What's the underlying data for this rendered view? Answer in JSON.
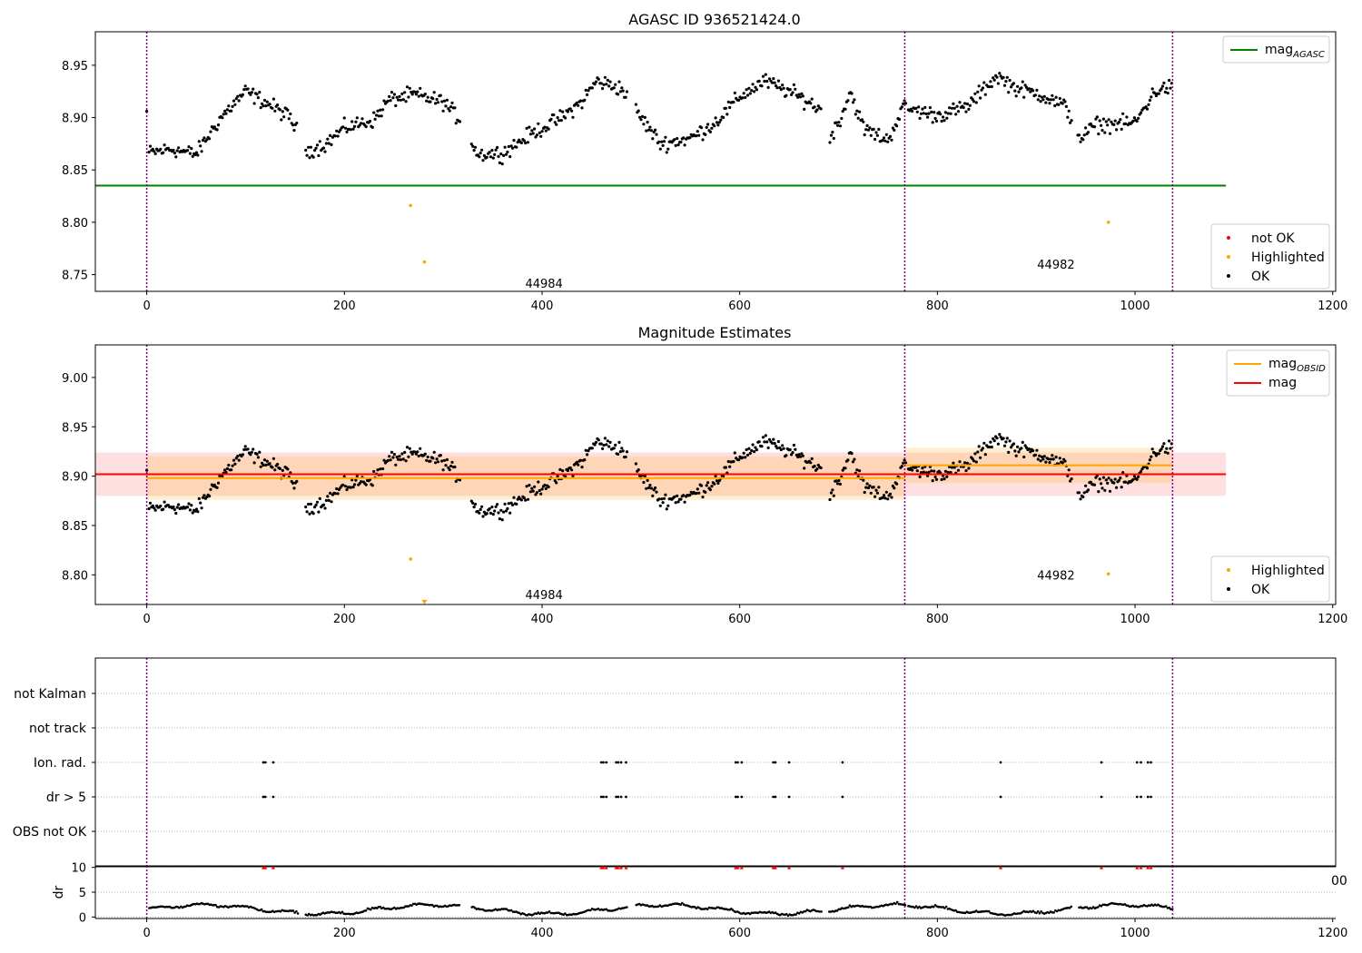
{
  "chart_data": [
    {
      "type": "scatter",
      "title": "AGASC ID 936521424.0",
      "xlabel": "",
      "ylabel": "",
      "xlim": [
        -52,
        1203
      ],
      "ylim": [
        8.734,
        8.982
      ],
      "xticks": [
        0,
        200,
        400,
        600,
        800,
        1000,
        1200
      ],
      "yticks": [
        8.75,
        8.8,
        8.85,
        8.9,
        8.95
      ],
      "legend": "top-right",
      "legend_items": [
        {
          "kind": "line",
          "label": "mag",
          "sub": "AGASC",
          "color": "#008000"
        }
      ],
      "legend2": "bottom-right",
      "legend2_items": [
        {
          "kind": "dot",
          "label": "not OK",
          "color": "#ff0000"
        },
        {
          "kind": "dot",
          "label": "Highlighted",
          "color": "#ffa500"
        },
        {
          "kind": "dot",
          "label": "OK",
          "color": "#000000"
        }
      ],
      "obs_boundaries": [
        0,
        767,
        1038
      ],
      "obsids": [
        {
          "label": "44984",
          "x": 383,
          "y": 8.742
        },
        {
          "label": "44982",
          "x": 901,
          "y": 8.76
        }
      ],
      "mag_agasc": {
        "value": 8.835,
        "x": [
          -52,
          1092
        ],
        "color": "#008000"
      },
      "highlighted": [
        {
          "x": 267,
          "y": 8.816
        },
        {
          "x": 281,
          "y": 8.762
        },
        {
          "x": 973,
          "y": 8.8
        }
      ],
      "ok_color": "#000000"
    },
    {
      "type": "scatter",
      "title": "Magnitude Estimates",
      "xlabel": "",
      "ylabel": "",
      "xlim": [
        -52,
        1203
      ],
      "ylim": [
        8.77,
        9.033
      ],
      "xticks": [
        0,
        200,
        400,
        600,
        800,
        1000,
        1200
      ],
      "yticks": [
        8.8,
        8.85,
        8.9,
        8.95,
        9.0
      ],
      "legend": "top-right",
      "legend_items": [
        {
          "kind": "line",
          "label": "mag",
          "sub": "OBSID",
          "color": "#ffa500"
        },
        {
          "kind": "line",
          "label": "mag",
          "sub": "",
          "color": "#ff0000"
        }
      ],
      "legend2": "bottom-right",
      "legend2_items": [
        {
          "kind": "dot",
          "label": "Highlighted",
          "color": "#ffa500"
        },
        {
          "kind": "dot",
          "label": "OK",
          "color": "#000000"
        }
      ],
      "obs_boundaries": [
        0,
        767,
        1038
      ],
      "obsids": [
        {
          "label": "44984",
          "x": 383,
          "y": 8.78
        },
        {
          "label": "44982",
          "x": 901,
          "y": 8.8
        }
      ],
      "mag": {
        "value": 8.902,
        "lo": 8.88,
        "hi": 8.924,
        "x": [
          -52,
          1092
        ],
        "color": "#ff0000"
      },
      "mag_obsid": [
        {
          "x": [
            0,
            767
          ],
          "value": 8.898,
          "lo": 8.876,
          "hi": 8.92
        },
        {
          "x": [
            767,
            1038
          ],
          "value": 8.911,
          "lo": 8.893,
          "hi": 8.929
        }
      ],
      "highlighted": [
        {
          "x": 267,
          "y": 8.816
        },
        {
          "x": 281,
          "y": 8.772,
          "marker": "down-triangle"
        },
        {
          "x": 973,
          "y": 8.801
        }
      ],
      "ok_color": "#000000"
    },
    {
      "type": "scatter",
      "title": "",
      "xlabel": "",
      "ylabel": "",
      "xlim": [
        -52,
        1203
      ],
      "categories": [
        "not Kalman",
        "not track",
        "Ion. rad.",
        "dr > 5",
        "OBS not OK"
      ],
      "flag_x": [
        118,
        120,
        128,
        460,
        462,
        465,
        475,
        477,
        480,
        485,
        596,
        598,
        602,
        634,
        636,
        650,
        704,
        864,
        966,
        1002,
        1006,
        1013,
        1016
      ],
      "flag_rows": [
        "Ion. rad.",
        "dr > 5"
      ],
      "obs_boundaries": [
        0,
        767,
        1038
      ]
    },
    {
      "type": "scatter",
      "title": "",
      "xlabel": "",
      "ylabel": "dr",
      "xlim": [
        -52,
        1203
      ],
      "ylim": [
        -0.3,
        10.3
      ],
      "xticks": [
        0,
        200,
        400,
        600,
        800,
        1000,
        1200
      ],
      "yticks": [
        0,
        5,
        10
      ],
      "clip_marker_value": 10,
      "partial_tick_text": "00",
      "obs_boundaries": [
        0,
        767,
        1038
      ]
    }
  ]
}
